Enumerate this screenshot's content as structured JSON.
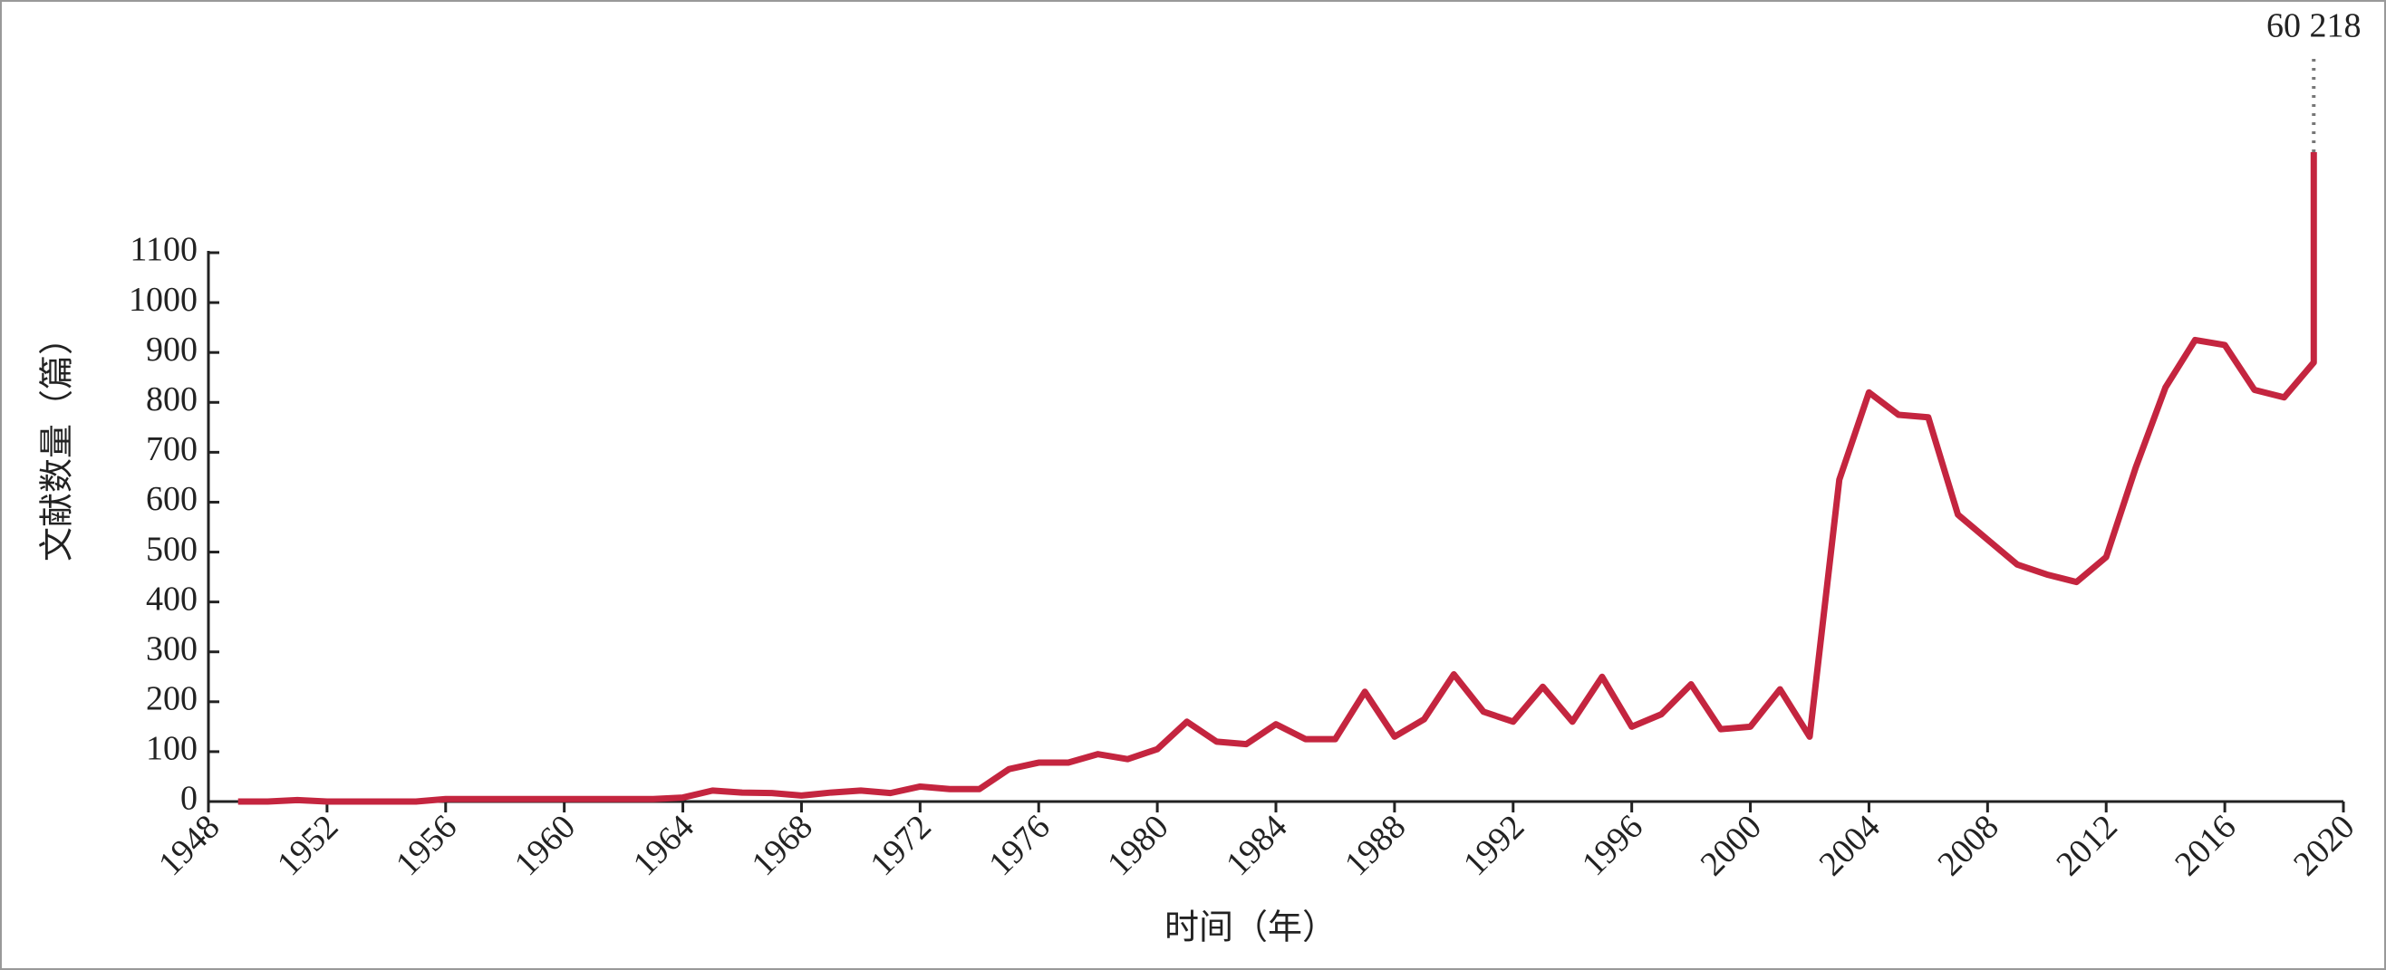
{
  "chart_data": {
    "type": "line",
    "x_label": "时间（年）",
    "y_label": "文献数量（篇）",
    "x": [
      1949,
      1950,
      1951,
      1952,
      1953,
      1954,
      1955,
      1956,
      1957,
      1958,
      1959,
      1960,
      1961,
      1962,
      1963,
      1964,
      1965,
      1966,
      1967,
      1968,
      1969,
      1970,
      1971,
      1972,
      1973,
      1974,
      1975,
      1976,
      1977,
      1978,
      1979,
      1980,
      1981,
      1982,
      1983,
      1984,
      1985,
      1986,
      1987,
      1988,
      1989,
      1990,
      1991,
      1992,
      1993,
      1994,
      1995,
      1996,
      1997,
      1998,
      1999,
      2000,
      2001,
      2002,
      2003,
      2004,
      2005,
      2006,
      2007,
      2008,
      2009,
      2010,
      2011,
      2012,
      2013,
      2014,
      2015,
      2016,
      2017,
      2018,
      2019,
      2019
    ],
    "values": [
      0,
      0,
      3,
      0,
      0,
      0,
      0,
      5,
      5,
      5,
      5,
      5,
      5,
      5,
      5,
      8,
      22,
      18,
      17,
      12,
      18,
      22,
      17,
      30,
      25,
      25,
      65,
      78,
      78,
      95,
      85,
      105,
      160,
      120,
      115,
      155,
      125,
      125,
      220,
      130,
      165,
      255,
      180,
      160,
      230,
      160,
      250,
      150,
      175,
      235,
      145,
      150,
      225,
      130,
      645,
      820,
      775,
      770,
      575,
      525,
      475,
      455,
      440,
      490,
      670,
      830,
      925,
      915,
      825,
      810,
      880,
      60218
    ],
    "value_labels": [
      null,
      null,
      null,
      null,
      null,
      null,
      null,
      null,
      null,
      null,
      null,
      null,
      null,
      null,
      null,
      null,
      null,
      null,
      null,
      null,
      null,
      null,
      null,
      null,
      null,
      null,
      null,
      null,
      null,
      null,
      null,
      null,
      null,
      null,
      null,
      null,
      null,
      null,
      null,
      null,
      null,
      null,
      null,
      null,
      null,
      null,
      null,
      null,
      null,
      null,
      null,
      null,
      null,
      null,
      null,
      null,
      null,
      null,
      null,
      null,
      null,
      null,
      null,
      null,
      null,
      null,
      null,
      null,
      null,
      null,
      null,
      "60 218"
    ],
    "color": "#c4253f",
    "xlim": [
      1948,
      2020
    ],
    "xticks": [
      1948,
      1952,
      1956,
      1960,
      1964,
      1968,
      1972,
      1976,
      1980,
      1984,
      1988,
      1992,
      1996,
      2000,
      2004,
      2008,
      2012,
      2016,
      2020
    ],
    "ylim": [
      0,
      1100
    ],
    "yticks": [
      0,
      100,
      200,
      300,
      400,
      500,
      600,
      700,
      800,
      900,
      1000,
      1100
    ],
    "grid": false
  }
}
